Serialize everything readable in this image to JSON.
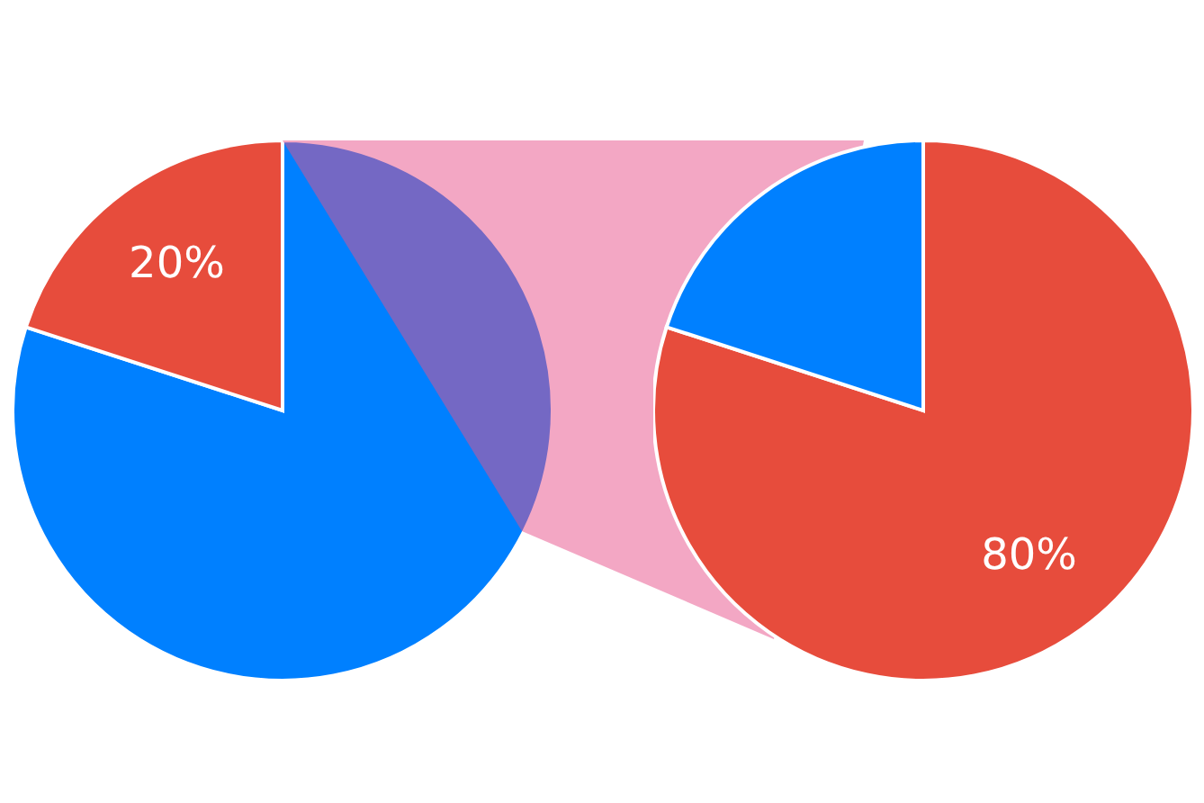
{
  "chart_data": [
    {
      "type": "pie",
      "categories": [
        null,
        null
      ],
      "values": [
        80,
        20
      ],
      "colors": [
        "#0080ff",
        "#e74c3c"
      ],
      "value_labels": [
        null,
        "20%"
      ]
    },
    {
      "type": "pie",
      "categories": [
        null,
        null
      ],
      "values": [
        80,
        20
      ],
      "colors": [
        "#e74c3c",
        "#0080ff"
      ],
      "value_labels": [
        "80%",
        null
      ]
    }
  ]
}
